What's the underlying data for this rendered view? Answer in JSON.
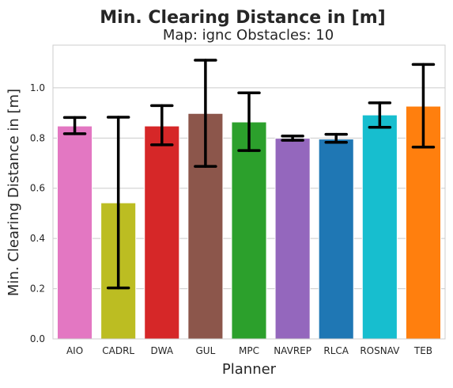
{
  "chart_data": {
    "type": "bar",
    "title": "Min. Clearing Distance in [m]",
    "subtitle": "Map: ignc Obstacles: 10",
    "xlabel": "Planner",
    "ylabel": "Min. Clearing Distance in [m]",
    "ylim": [
      0,
      1.17
    ],
    "yticks": [
      0.0,
      0.2,
      0.4,
      0.6,
      0.8,
      1.0
    ],
    "ytick_labels": [
      "0.0",
      "0.2",
      "0.4",
      "0.6",
      "0.8",
      "1.0"
    ],
    "grid": "horizontal",
    "categories": [
      "AIO",
      "CADRL",
      "DWA",
      "GUL",
      "MPC",
      "NAVREP",
      "RLCA",
      "ROSNAV",
      "TEB"
    ],
    "values": [
      0.848,
      0.542,
      0.848,
      0.898,
      0.864,
      0.799,
      0.796,
      0.892,
      0.927
    ],
    "error_low": [
      0.817,
      0.203,
      0.773,
      0.687,
      0.75,
      0.791,
      0.783,
      0.843,
      0.764
    ],
    "error_high": [
      0.882,
      0.883,
      0.929,
      1.11,
      0.98,
      0.808,
      0.815,
      0.94,
      1.093
    ],
    "colors": [
      "#e377c2",
      "#bcbd22",
      "#d62728",
      "#8c564b",
      "#2ca02c",
      "#9467bd",
      "#1f77b4",
      "#17becf",
      "#ff7f0e"
    ]
  }
}
